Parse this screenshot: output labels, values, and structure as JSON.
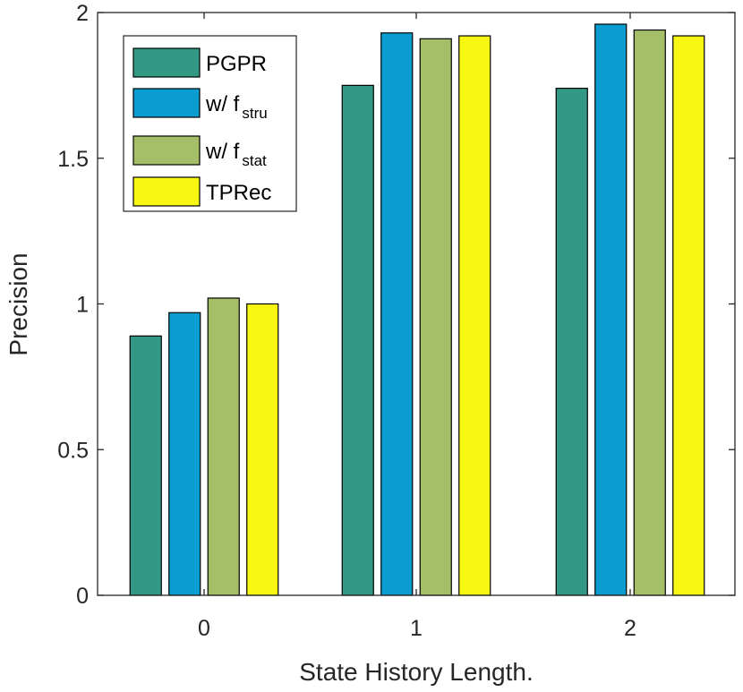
{
  "chart_data": {
    "type": "bar",
    "title": "",
    "xlabel": "State History Length.",
    "ylabel": "Precision",
    "categories": [
      "0",
      "1",
      "2"
    ],
    "ylim": [
      0,
      2
    ],
    "yticks": [
      "0",
      "0.5",
      "1",
      "1.5",
      "2"
    ],
    "grid": false,
    "legend_position": "top-left",
    "series": [
      {
        "name": "PGPR",
        "label_main": "PGPR",
        "label_sub": "",
        "color": "#339984",
        "values": [
          0.89,
          1.75,
          1.74
        ]
      },
      {
        "name": "w/ f_stru",
        "label_main": "w/ f",
        "label_sub": "stru",
        "color": "#0c9dd0",
        "values": [
          0.97,
          1.93,
          1.96
        ]
      },
      {
        "name": "w/ f_stat",
        "label_main": "w/ f",
        "label_sub": "stat",
        "color": "#a5bf69",
        "values": [
          1.02,
          1.91,
          1.94
        ]
      },
      {
        "name": "TPRec",
        "label_main": "TPRec",
        "label_sub": "",
        "color": "#f7f713",
        "values": [
          1.0,
          1.92,
          1.92
        ]
      }
    ]
  }
}
